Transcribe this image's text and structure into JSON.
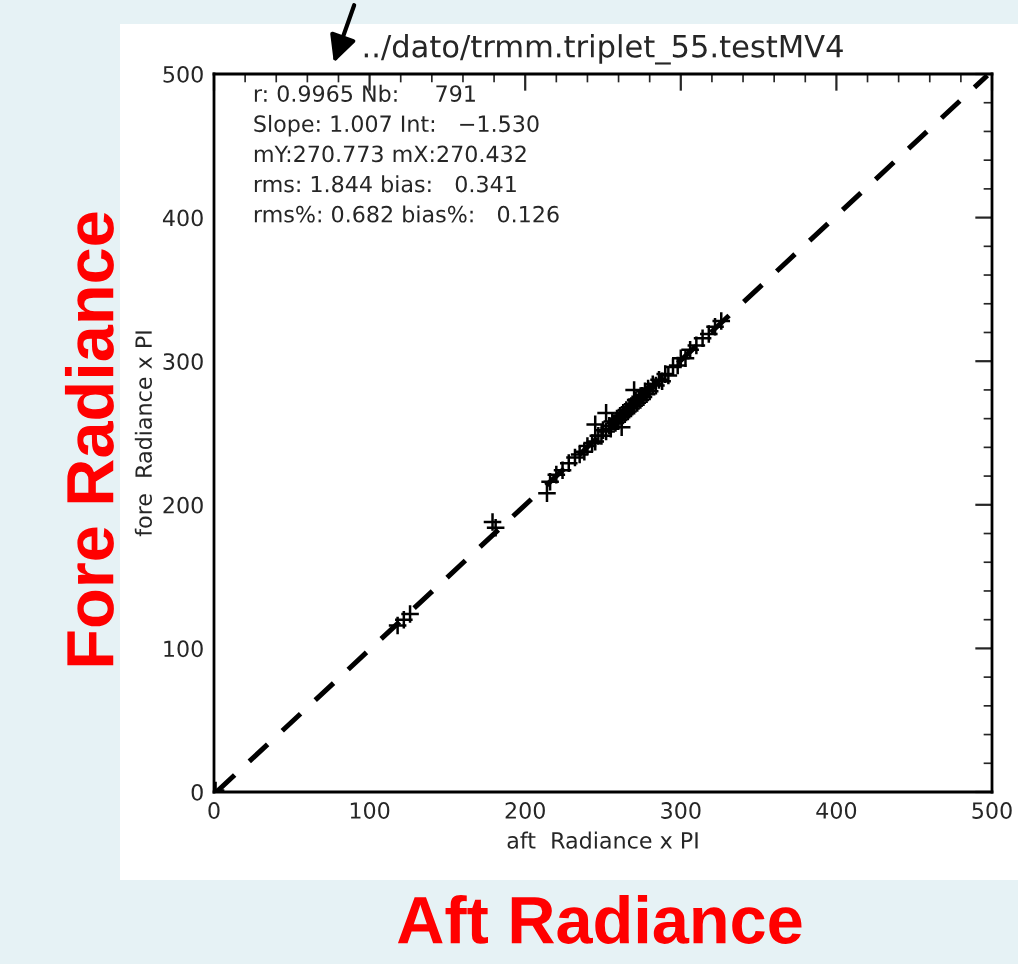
{
  "chart_data": {
    "type": "scatter",
    "title": "../dato/trmm.triplet_55.testMV4",
    "xlabel": "aft  Radiance x PI",
    "ylabel": "fore  Radiance x PI",
    "xlim": [
      0,
      500
    ],
    "ylim": [
      0,
      500
    ],
    "xticks": [
      0,
      100,
      200,
      300,
      400,
      500
    ],
    "yticks": [
      0,
      100,
      200,
      300,
      400,
      500
    ],
    "grid": false,
    "legend": false,
    "series": [
      {
        "marker": "cross",
        "color": "#000000",
        "x": [
          1,
          118,
          122,
          126,
          179,
          181,
          214,
          216,
          220,
          224,
          228,
          232,
          235,
          238,
          240,
          243,
          245,
          247,
          249,
          250,
          252,
          254,
          255,
          256,
          258,
          259,
          260,
          261,
          262,
          263,
          264,
          265,
          266,
          267,
          268,
          269,
          270,
          271,
          272,
          273,
          274,
          275,
          276,
          277,
          278,
          279,
          280,
          282,
          284,
          286,
          288,
          290,
          292,
          295,
          298,
          300,
          303,
          306,
          310,
          314,
          318,
          322,
          326,
          252,
          262,
          245,
          270
        ],
        "values": [
          1,
          116,
          120,
          124,
          188,
          184,
          208,
          216,
          221,
          224,
          229,
          233,
          235,
          237,
          241,
          243,
          244,
          248,
          248,
          252,
          251,
          255,
          253,
          258,
          257,
          260,
          259,
          262,
          261,
          264,
          263,
          266,
          265,
          268,
          267,
          270,
          269,
          273,
          271,
          274,
          273,
          276,
          275,
          279,
          277,
          281,
          279,
          284,
          283,
          287,
          286,
          291,
          290,
          296,
          297,
          302,
          302,
          308,
          311,
          316,
          319,
          324,
          328,
          264,
          254,
          256,
          280
        ]
      },
      {
        "type": "line",
        "line_style": "dashed",
        "color": "#000000",
        "x": [
          1.5,
          497
        ],
        "values": [
          0,
          499
        ]
      }
    ],
    "annotations": [
      "r: 0.9965 Nb:     791",
      "Slope: 1.007 Int:   −1.530",
      "mY:270.773 mX:270.432",
      "rms: 1.844 bias:   0.341",
      "rms%: 0.682 bias%:   0.126",
      "Fore Radiance",
      "Aft Radiance"
    ]
  }
}
